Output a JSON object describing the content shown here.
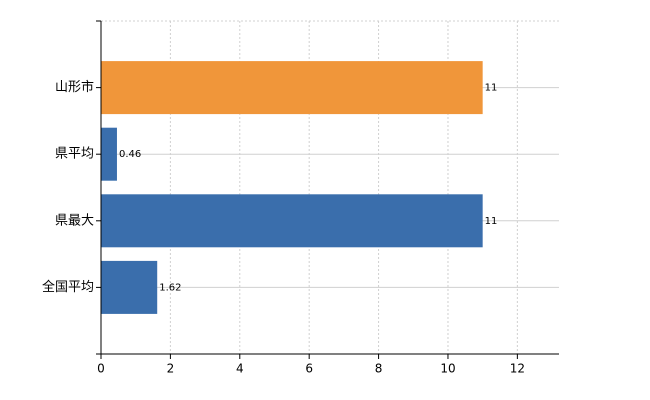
{
  "chart_data": {
    "type": "bar",
    "orientation": "horizontal",
    "categories": [
      "山形市",
      "県平均",
      "県最大",
      "全国平均"
    ],
    "values": [
      11,
      0.46,
      11,
      1.62
    ],
    "colors": [
      "#f0963a",
      "#3a6eac",
      "#3a6eac",
      "#3a6eac"
    ],
    "xlim": [
      0,
      13.2
    ],
    "xticks": [
      0,
      2,
      4,
      6,
      8,
      10,
      12
    ],
    "grid": true
  }
}
